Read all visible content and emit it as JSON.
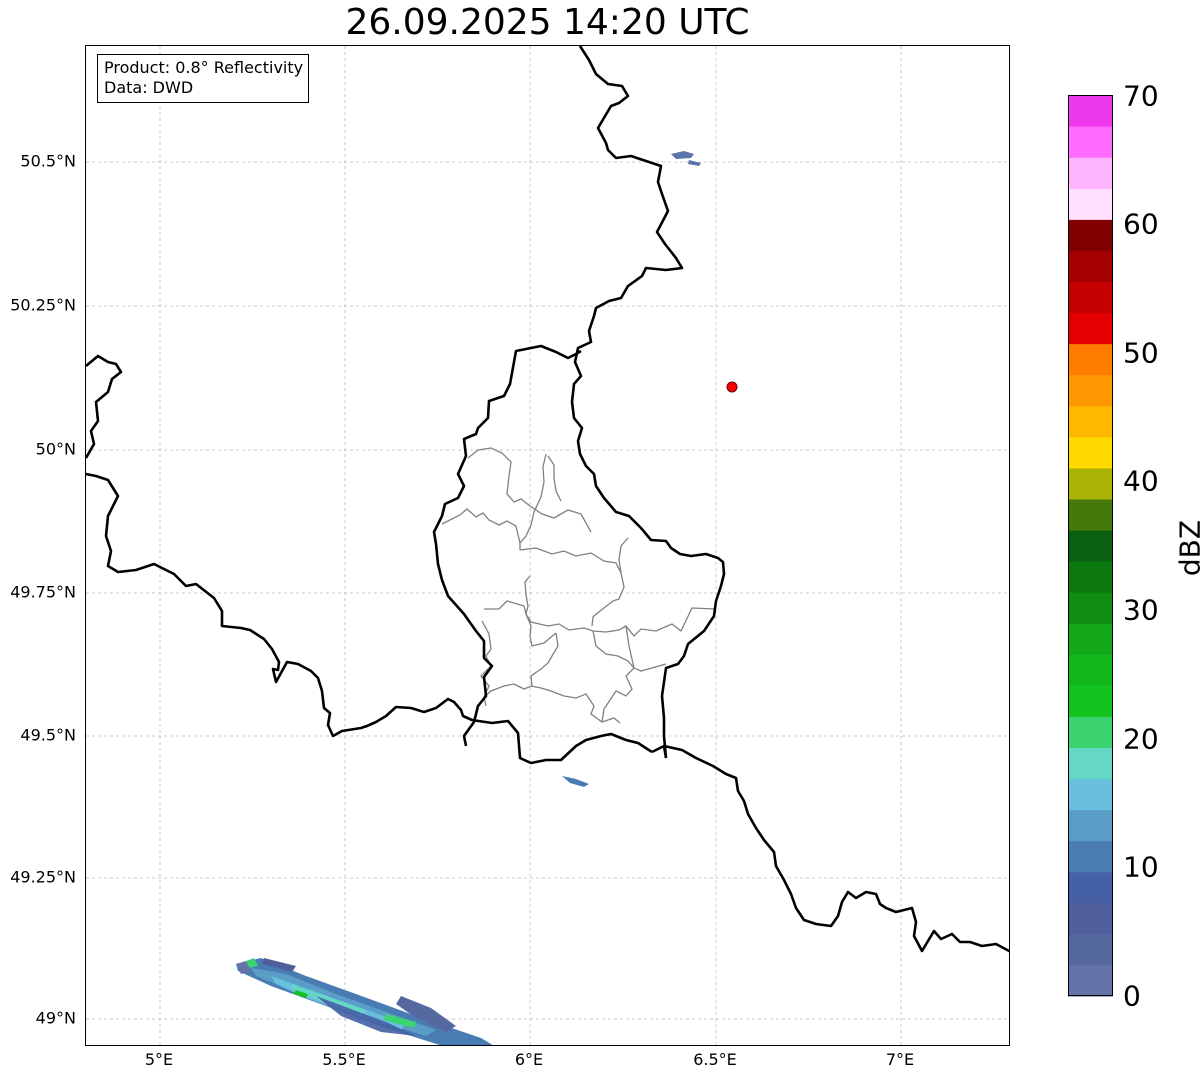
{
  "title": "26.09.2025 14:20 UTC",
  "info": {
    "product": "Product: 0.8° Reflectivity",
    "data": "Data: DWD"
  },
  "map_extent": {
    "lon": [
      4.8,
      7.3
    ],
    "lat": [
      48.95,
      50.7
    ]
  },
  "lat_ticks": [
    {
      "label": "50.5°N",
      "value": 50.5
    },
    {
      "label": "50.25°N",
      "value": 50.25
    },
    {
      "label": "50°N",
      "value": 50.0
    },
    {
      "label": "49.75°N",
      "value": 49.75
    },
    {
      "label": "49.5°N",
      "value": 49.5
    },
    {
      "label": "49.25°N",
      "value": 49.25
    },
    {
      "label": "49°N",
      "value": 49.0
    }
  ],
  "lon_ticks": [
    {
      "label": "5°E",
      "value": 5.0
    },
    {
      "label": "5.5°E",
      "value": 5.5
    },
    {
      "label": "6°E",
      "value": 6.0
    },
    {
      "label": "6.5°E",
      "value": 6.5
    },
    {
      "label": "7°E",
      "value": 7.0
    }
  ],
  "marker": {
    "lon": 6.55,
    "lat": 50.11,
    "color": "#ff0000"
  },
  "colorbar": {
    "unit": "dBZ",
    "min": 0,
    "max": 70,
    "tick_labels": [
      "0",
      "10",
      "20",
      "30",
      "40",
      "50",
      "60",
      "70"
    ],
    "colors": [
      "#6474a8",
      "#5668a0",
      "#4e5f9c",
      "#4560a4",
      "#4a7cb4",
      "#5a9ec8",
      "#68c0dc",
      "#64d8c4",
      "#3cd470",
      "#14c41e",
      "#10b81c",
      "#12a818",
      "#0f8c12",
      "#0c7810",
      "#086010",
      "#447a0a",
      "#aab406",
      "#ffd800",
      "#ffb800",
      "#ff9800",
      "#ff7c00",
      "#e40000",
      "#c40000",
      "#a40000",
      "#800000",
      "#ffe0ff",
      "#ffb4ff",
      "#ff6cff",
      "#ee38ee"
    ]
  }
}
